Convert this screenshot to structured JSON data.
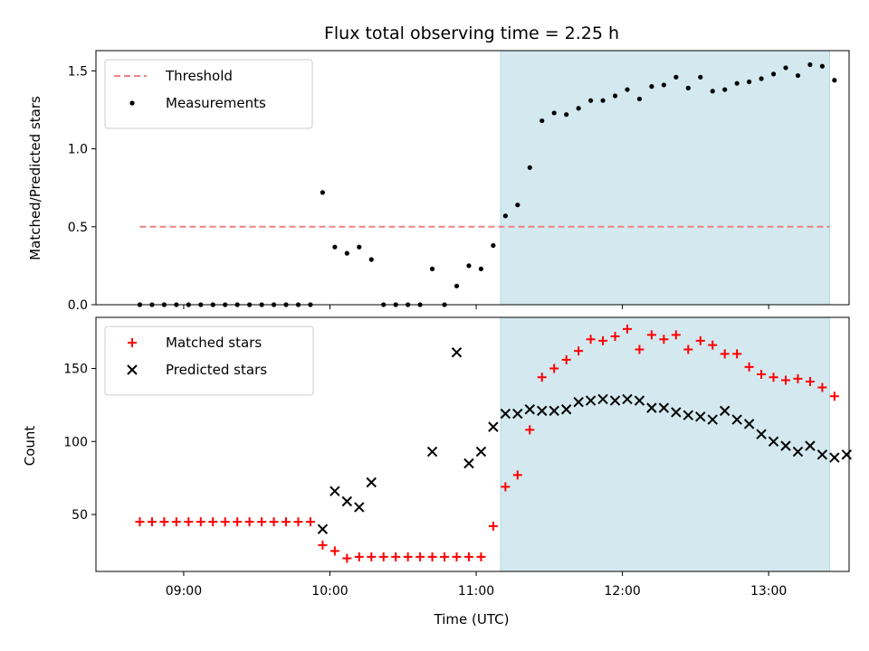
{
  "chart_data": {
    "type": "scatter",
    "title": "Flux total observing time = 2.25 h",
    "xlabel": "Time (UTC)",
    "x_ticks": [
      "09:00",
      "10:00",
      "11:00",
      "12:00",
      "13:00"
    ],
    "x_tick_values": [
      "09:00",
      "10:00",
      "11:00",
      "12:00",
      "13:00"
    ],
    "xlim": [
      "08:24",
      "13:33"
    ],
    "observing_window": {
      "start": "11:10",
      "end": "13:25",
      "color": "#d3e9ef"
    },
    "panels": [
      {
        "id": "ratio",
        "ylabel": "Matched/Predicted stars",
        "ylim": [
          0,
          1.63
        ],
        "y_ticks": [
          "0.0",
          "0.5",
          "1.0",
          "1.5"
        ],
        "y_tick_values": [
          0,
          0.5,
          1.0,
          1.5
        ],
        "legend": "upper left",
        "series": [
          {
            "name": "Threshold",
            "kind": "dashed-line",
            "color": "#f08080",
            "points": [
              [
                "08:42",
                0.5
              ],
              [
                "13:25",
                0.5
              ]
            ]
          },
          {
            "name": "Measurements",
            "kind": "dot",
            "color": "#000000",
            "points": [
              [
                "08:42",
                0
              ],
              [
                "08:47",
                0
              ],
              [
                "08:52",
                0
              ],
              [
                "08:57",
                0
              ],
              [
                "09:02",
                0
              ],
              [
                "09:07",
                0
              ],
              [
                "09:12",
                0
              ],
              [
                "09:17",
                0
              ],
              [
                "09:22",
                0
              ],
              [
                "09:27",
                0
              ],
              [
                "09:32",
                0
              ],
              [
                "09:37",
                0
              ],
              [
                "09:42",
                0
              ],
              [
                "09:47",
                0
              ],
              [
                "09:52",
                0
              ],
              [
                "09:57",
                0.72
              ],
              [
                "10:02",
                0.37
              ],
              [
                "10:07",
                0.33
              ],
              [
                "10:12",
                0.37
              ],
              [
                "10:17",
                0.29
              ],
              [
                "10:22",
                0
              ],
              [
                "10:27",
                0
              ],
              [
                "10:32",
                0
              ],
              [
                "10:37",
                0
              ],
              [
                "10:42",
                0.23
              ],
              [
                "10:47",
                0
              ],
              [
                "10:52",
                0.12
              ],
              [
                "10:57",
                0.25
              ],
              [
                "11:02",
                0.23
              ],
              [
                "11:07",
                0.38
              ],
              [
                "11:12",
                0.57
              ],
              [
                "11:17",
                0.64
              ],
              [
                "11:22",
                0.88
              ],
              [
                "11:27",
                1.18
              ],
              [
                "11:32",
                1.23
              ],
              [
                "11:37",
                1.22
              ],
              [
                "11:42",
                1.26
              ],
              [
                "11:47",
                1.31
              ],
              [
                "11:52",
                1.31
              ],
              [
                "11:57",
                1.34
              ],
              [
                "12:02",
                1.38
              ],
              [
                "12:07",
                1.32
              ],
              [
                "12:12",
                1.4
              ],
              [
                "12:17",
                1.41
              ],
              [
                "12:22",
                1.46
              ],
              [
                "12:27",
                1.39
              ],
              [
                "12:32",
                1.46
              ],
              [
                "12:37",
                1.37
              ],
              [
                "12:42",
                1.38
              ],
              [
                "12:47",
                1.42
              ],
              [
                "12:52",
                1.43
              ],
              [
                "12:57",
                1.45
              ],
              [
                "13:02",
                1.48
              ],
              [
                "13:07",
                1.52
              ],
              [
                "13:12",
                1.47
              ],
              [
                "13:17",
                1.54
              ],
              [
                "13:22",
                1.53
              ],
              [
                "13:27",
                1.44
              ]
            ]
          }
        ]
      },
      {
        "id": "count",
        "ylabel": "Count",
        "ylim": [
          11,
          185
        ],
        "y_ticks": [
          "50",
          "100",
          "150"
        ],
        "y_tick_values": [
          50,
          100,
          150
        ],
        "legend": "upper left",
        "series": [
          {
            "name": "Matched stars",
            "kind": "plus",
            "color": "#ff0000",
            "points": [
              [
                "08:42",
                45
              ],
              [
                "08:47",
                45
              ],
              [
                "08:52",
                45
              ],
              [
                "08:57",
                45
              ],
              [
                "09:02",
                45
              ],
              [
                "09:07",
                45
              ],
              [
                "09:12",
                45
              ],
              [
                "09:17",
                45
              ],
              [
                "09:22",
                45
              ],
              [
                "09:27",
                45
              ],
              [
                "09:32",
                45
              ],
              [
                "09:37",
                45
              ],
              [
                "09:42",
                45
              ],
              [
                "09:47",
                45
              ],
              [
                "09:52",
                45
              ],
              [
                "09:57",
                29
              ],
              [
                "10:02",
                25
              ],
              [
                "10:07",
                20
              ],
              [
                "10:12",
                21
              ],
              [
                "10:17",
                21
              ],
              [
                "10:22",
                21
              ],
              [
                "10:27",
                21
              ],
              [
                "10:32",
                21
              ],
              [
                "10:37",
                21
              ],
              [
                "10:42",
                21
              ],
              [
                "10:47",
                21
              ],
              [
                "10:52",
                21
              ],
              [
                "10:57",
                21
              ],
              [
                "11:02",
                21
              ],
              [
                "11:07",
                42
              ],
              [
                "11:12",
                69
              ],
              [
                "11:17",
                77
              ],
              [
                "11:22",
                108
              ],
              [
                "11:27",
                144
              ],
              [
                "11:32",
                150
              ],
              [
                "11:37",
                156
              ],
              [
                "11:42",
                162
              ],
              [
                "11:47",
                170
              ],
              [
                "11:52",
                169
              ],
              [
                "11:57",
                172
              ],
              [
                "12:02",
                177
              ],
              [
                "12:07",
                163
              ],
              [
                "12:12",
                173
              ],
              [
                "12:17",
                170
              ],
              [
                "12:22",
                173
              ],
              [
                "12:27",
                163
              ],
              [
                "12:32",
                169
              ],
              [
                "12:37",
                166
              ],
              [
                "12:42",
                160
              ],
              [
                "12:47",
                160
              ],
              [
                "12:52",
                151
              ],
              [
                "12:57",
                146
              ],
              [
                "13:02",
                144
              ],
              [
                "13:07",
                142
              ],
              [
                "13:12",
                143
              ],
              [
                "13:17",
                141
              ],
              [
                "13:22",
                137
              ],
              [
                "13:27",
                131
              ]
            ]
          },
          {
            "name": "Predicted stars",
            "kind": "cross",
            "color": "#000000",
            "points": [
              [
                "09:57",
                40
              ],
              [
                "10:02",
                66
              ],
              [
                "10:07",
                59
              ],
              [
                "10:12",
                55
              ],
              [
                "10:17",
                72
              ],
              [
                "10:42",
                93
              ],
              [
                "10:52",
                161
              ],
              [
                "10:57",
                85
              ],
              [
                "11:02",
                93
              ],
              [
                "11:07",
                110
              ],
              [
                "11:12",
                119
              ],
              [
                "11:17",
                119
              ],
              [
                "11:22",
                122
              ],
              [
                "11:27",
                121
              ],
              [
                "11:32",
                121
              ],
              [
                "11:37",
                122
              ],
              [
                "11:42",
                127
              ],
              [
                "11:47",
                128
              ],
              [
                "11:52",
                129
              ],
              [
                "11:57",
                128
              ],
              [
                "12:02",
                129
              ],
              [
                "12:07",
                128
              ],
              [
                "12:12",
                123
              ],
              [
                "12:17",
                123
              ],
              [
                "12:22",
                120
              ],
              [
                "12:27",
                118
              ],
              [
                "12:32",
                117
              ],
              [
                "12:37",
                115
              ],
              [
                "12:42",
                121
              ],
              [
                "12:47",
                115
              ],
              [
                "12:52",
                112
              ],
              [
                "12:57",
                105
              ],
              [
                "13:02",
                100
              ],
              [
                "13:07",
                97
              ],
              [
                "13:12",
                93
              ],
              [
                "13:17",
                97
              ],
              [
                "13:22",
                91
              ],
              [
                "13:27",
                89
              ],
              [
                "13:32",
                91
              ]
            ]
          }
        ]
      }
    ]
  }
}
